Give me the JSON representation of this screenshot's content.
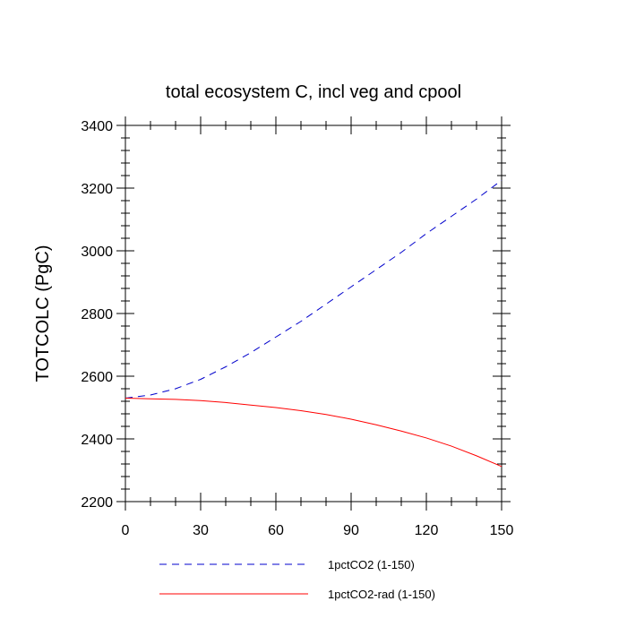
{
  "chart_data": {
    "type": "line",
    "title": "total ecosystem C, incl veg and cpool",
    "ylabel": "TOTCOLC  (PgC)",
    "xlabel": "",
    "xlim": [
      0,
      150
    ],
    "ylim": [
      2200,
      3400
    ],
    "xticks": [
      0,
      30,
      60,
      90,
      120,
      150
    ],
    "yticks": [
      2200,
      2400,
      2600,
      2800,
      3000,
      3200,
      3400
    ],
    "xtick_labels": [
      "0",
      "30",
      "60",
      "90",
      "120",
      "150"
    ],
    "ytick_labels": [
      "2200",
      "2400",
      "2600",
      "2800",
      "3000",
      "3200",
      "3400"
    ],
    "grid": false,
    "legend_position": "bottom",
    "series": [
      {
        "name": "1pctCO2 (1-150)",
        "color": "#0000cc",
        "dash": "dashed",
        "x": [
          0,
          10,
          20,
          30,
          40,
          50,
          60,
          70,
          80,
          90,
          100,
          110,
          120,
          130,
          140,
          150
        ],
        "y": [
          2530,
          2540,
          2560,
          2590,
          2630,
          2675,
          2725,
          2775,
          2830,
          2885,
          2940,
          2995,
          3055,
          3110,
          3165,
          3225
        ]
      },
      {
        "name": "1pctCO2-rad (1-150)",
        "color": "#ff0000",
        "dash": "solid",
        "x": [
          0,
          10,
          20,
          30,
          40,
          50,
          60,
          70,
          80,
          90,
          100,
          110,
          120,
          130,
          140,
          150
        ],
        "y": [
          2530,
          2528,
          2526,
          2522,
          2516,
          2508,
          2500,
          2490,
          2478,
          2463,
          2445,
          2425,
          2403,
          2377,
          2346,
          2312
        ]
      }
    ]
  }
}
